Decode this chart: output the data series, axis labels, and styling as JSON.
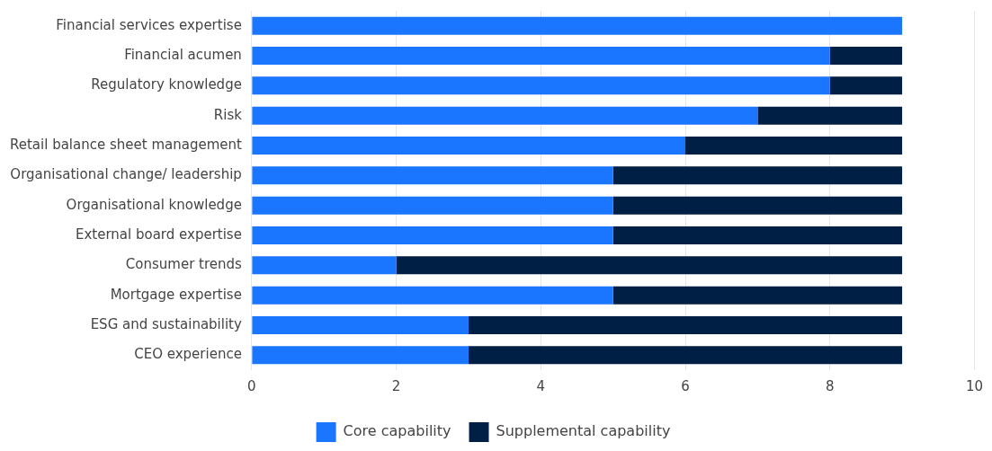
{
  "chart_data": {
    "type": "bar",
    "orientation": "horizontal",
    "stacked": true,
    "categories": [
      "Financial services expertise",
      "Financial acumen",
      "Regulatory knowledge",
      "Risk",
      "Retail balance sheet management",
      "Organisational change/ leadership",
      "Organisational knowledge",
      "External board expertise",
      "Consumer trends",
      "Mortgage expertise",
      "ESG and sustainability",
      "CEO experience"
    ],
    "series": [
      {
        "name": "Core capability",
        "color": "#1a75ff",
        "values": [
          9,
          8,
          8,
          7,
          6,
          5,
          5,
          5,
          2,
          5,
          3,
          3
        ]
      },
      {
        "name": "Supplemental capability",
        "color": "#001f45",
        "values": [
          0,
          1,
          1,
          2,
          3,
          4,
          4,
          4,
          7,
          4,
          6,
          6
        ]
      }
    ],
    "xlim": [
      0,
      10
    ],
    "xticks": [
      0,
      2,
      4,
      6,
      8,
      10
    ],
    "grid": "x",
    "legend": "bottom"
  }
}
